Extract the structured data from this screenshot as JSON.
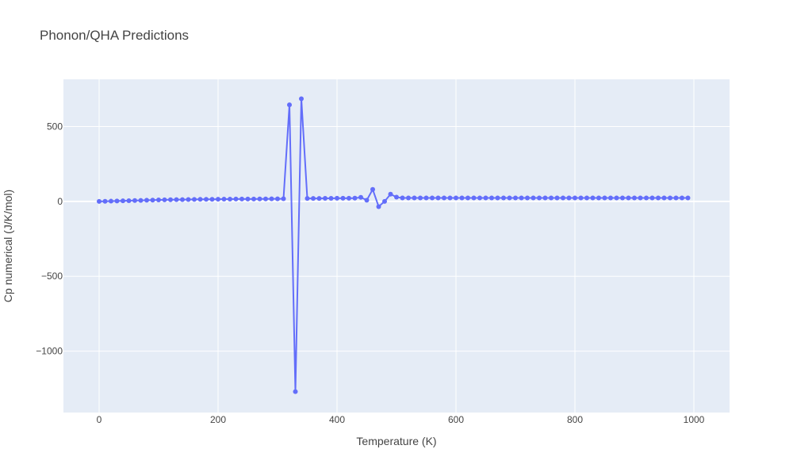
{
  "chart_data": {
    "type": "line",
    "title": "Phonon/QHA Predictions",
    "xlabel": "Temperature (K)",
    "ylabel": "Cp numerical (J/K/mol)",
    "xlim": [
      -60,
      1060
    ],
    "ylim": [
      -1410,
      815
    ],
    "xticks": [
      0,
      200,
      400,
      600,
      800,
      1000
    ],
    "xtick_labels": [
      "0",
      "200",
      "400",
      "600",
      "800",
      "1000"
    ],
    "yticks": [
      -1000,
      -500,
      0,
      500
    ],
    "ytick_labels": [
      "−1000",
      "−500",
      "0",
      "500"
    ],
    "grid": true,
    "legend": "none",
    "colors": {
      "series": "#636efa",
      "plot_bg": "#e5ecf6",
      "grid": "#ffffff",
      "text": "#444444"
    },
    "series": [
      {
        "x": [
          0,
          10,
          20,
          30,
          40,
          50,
          60,
          70,
          80,
          90,
          100,
          110,
          120,
          130,
          140,
          150,
          160,
          170,
          180,
          190,
          200,
          210,
          220,
          230,
          240,
          250,
          260,
          270,
          280,
          290,
          300,
          310,
          320,
          330,
          340,
          350,
          360,
          370,
          380,
          390,
          400,
          410,
          420,
          430,
          440,
          450,
          460,
          470,
          480,
          490,
          500,
          510,
          520,
          530,
          540,
          550,
          560,
          570,
          580,
          590,
          600,
          610,
          620,
          630,
          640,
          650,
          660,
          670,
          680,
          690,
          700,
          710,
          720,
          730,
          740,
          750,
          760,
          770,
          780,
          790,
          800,
          810,
          820,
          830,
          840,
          850,
          860,
          870,
          880,
          890,
          900,
          910,
          920,
          930,
          940,
          950,
          960,
          970,
          980,
          990
        ],
        "y": [
          0,
          0.5,
          1.5,
          2.5,
          3.5,
          4.5,
          5.5,
          6.5,
          7.5,
          8.5,
          9.5,
          10.5,
          11,
          11.5,
          12,
          12.5,
          13,
          13.5,
          14,
          14,
          14.5,
          15,
          15,
          15.5,
          15.5,
          16,
          16,
          16.5,
          16.5,
          17,
          17,
          17.5,
          645,
          -1270,
          685,
          20,
          20,
          20,
          20.5,
          20.5,
          21,
          21,
          21,
          21.5,
          27,
          8,
          80,
          -35,
          0,
          48,
          28,
          23,
          23,
          23,
          23,
          23,
          23,
          23,
          23,
          23,
          23,
          23,
          23,
          23,
          23,
          23,
          23,
          23,
          23,
          23,
          23,
          23,
          23,
          23,
          23,
          23,
          23,
          23,
          23,
          23,
          23,
          23,
          23,
          23,
          23,
          23,
          23,
          23,
          23,
          23,
          23,
          23,
          23,
          23,
          23,
          23,
          23,
          23,
          23,
          23
        ]
      }
    ]
  }
}
